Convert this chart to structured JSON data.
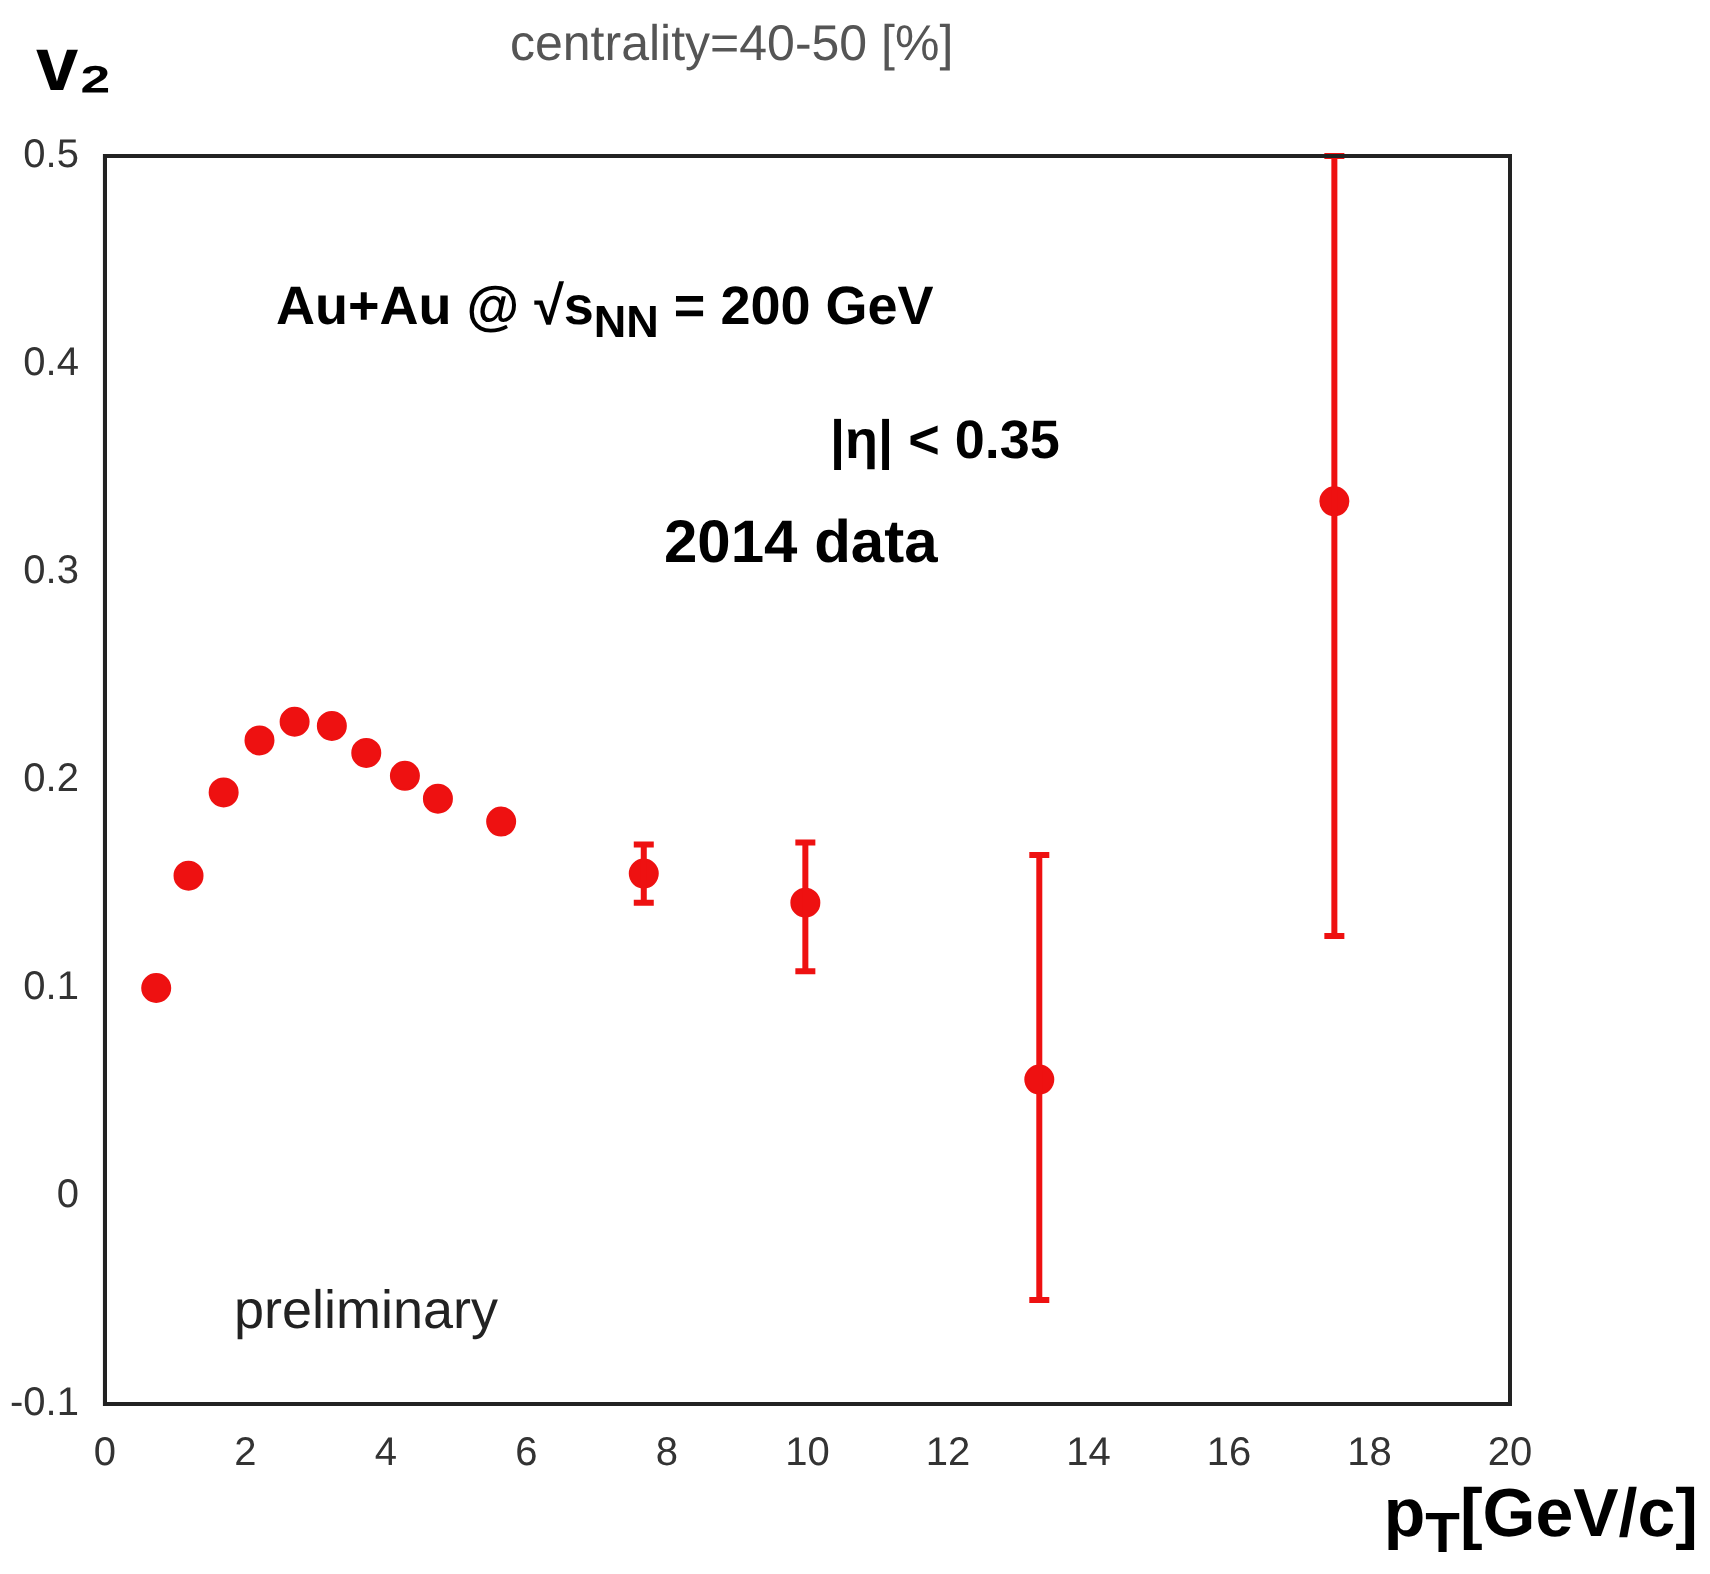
{
  "chart_data": {
    "type": "scatter",
    "title": "centrality=40-50  [%]",
    "ylabel": "v₂",
    "xlabel": "p$_{T}$[GeV/c]",
    "annotations": [
      "Au+Au @ √s$_{NN}$ = 200 GeV",
      "|η| < 0.35",
      "2014 data",
      "preliminary"
    ],
    "x": [
      0.73,
      1.19,
      1.69,
      2.2,
      2.7,
      3.23,
      3.72,
      4.27,
      4.74,
      5.64,
      7.67,
      9.97,
      13.3,
      17.5
    ],
    "series": [
      {
        "color": "#ee1111",
        "values": [
          0.1,
          0.154,
          0.194,
          0.219,
          0.228,
          0.226,
          0.213,
          0.202,
          0.191,
          0.18,
          0.155,
          0.141,
          0.056,
          0.334
        ],
        "errors": [
          null,
          null,
          null,
          null,
          null,
          null,
          null,
          null,
          null,
          null,
          0.014,
          [
            0.108,
            0.17
          ],
          [
            -0.05,
            0.164
          ],
          [
            0.125,
            0.5
          ]
        ]
      }
    ],
    "xlim": [
      0,
      20
    ],
    "xticks": [
      0,
      2,
      4,
      6,
      8,
      10,
      12,
      14,
      16,
      18,
      20
    ],
    "ylim": [
      -0.1,
      0.5
    ],
    "yticks": [
      -0.1,
      0,
      0.1,
      0.2,
      0.3,
      0.4,
      0.5
    ],
    "marker": "circle",
    "grid": false,
    "legend": false
  }
}
